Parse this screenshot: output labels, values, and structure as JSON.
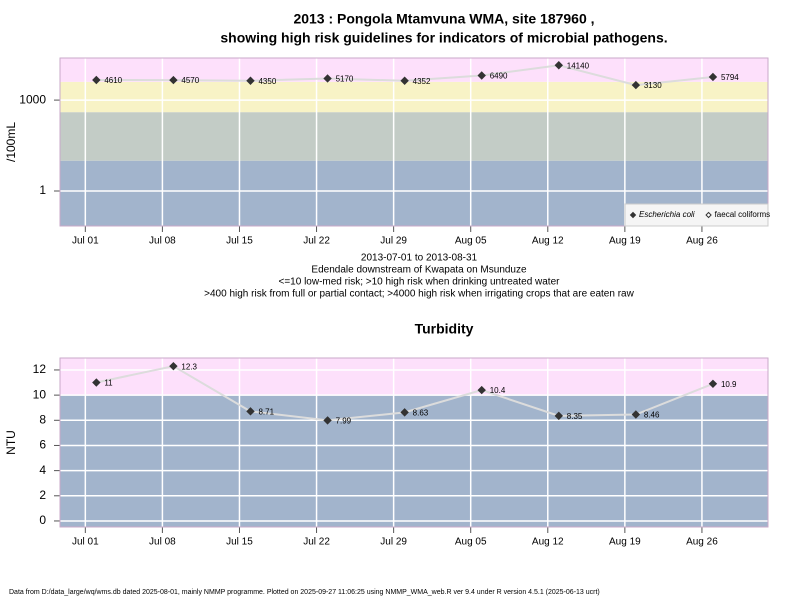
{
  "chart_data": [
    {
      "type": "line",
      "title": [
        "2013 : Pongola Mtamvuna WMA, site 187960 ,",
        "showing high risk guidelines for indicators of microbial pathogens."
      ],
      "notes": [
        "2013-07-01 to 2013-08-31",
        "Edendale downstream of Kwapata on Msunduze",
        "<=10 low-med risk; >10 high risk when drinking untreated water",
        ">400 high risk from full or partial contact; >4000 high risk when irrigating crops that are eaten raw"
      ],
      "y_label": "/100mL",
      "log_y": true,
      "x": [
        1,
        8,
        15,
        22,
        29,
        36,
        43,
        50,
        57
      ],
      "xlim": [
        -2.3,
        62
      ],
      "xticks": [
        {
          "value": 0,
          "label": "Jul 01"
        },
        {
          "value": 7,
          "label": "Jul 08"
        },
        {
          "value": 14,
          "label": "Jul 15"
        },
        {
          "value": 21,
          "label": "Jul 22"
        },
        {
          "value": 28,
          "label": "Jul 29"
        },
        {
          "value": 35,
          "label": "Aug 05"
        },
        {
          "value": 42,
          "label": "Aug 12"
        },
        {
          "value": 49,
          "label": "Aug 19"
        },
        {
          "value": 56,
          "label": "Aug 26"
        }
      ],
      "ylim": [
        0.07,
        24500
      ],
      "yticks": [
        1,
        1000
      ],
      "bands": [
        {
          "to": 10,
          "color": "#a2b4cc"
        },
        {
          "from": 10,
          "to": 400,
          "color": "#c3ccc6"
        },
        {
          "from": 400,
          "to": 4000,
          "color": "#f8f3c6"
        },
        {
          "from": 4000,
          "color": "#fde0fb"
        }
      ],
      "grid": true,
      "line_color": "#dcdcdc",
      "legend": "lower right",
      "series": [
        {
          "name": "Escherichia coli",
          "color": "#333333",
          "values": [
            4610,
            4570,
            4350,
            5170,
            4352,
            6490,
            14140,
            3130,
            5794
          ]
        },
        {
          "name": "faecal coliforms",
          "color": "#333333",
          "hollow": true,
          "values": [
            null,
            null,
            null,
            null,
            null,
            null,
            null,
            null,
            null
          ]
        }
      ]
    },
    {
      "type": "line",
      "title": [
        "Turbidity"
      ],
      "y_label": "NTU",
      "log_y": false,
      "x": [
        1,
        8,
        15,
        22,
        29,
        36,
        43,
        50,
        57
      ],
      "xlim": [
        -2.3,
        62
      ],
      "xticks": [
        {
          "value": 0,
          "label": "Jul 01"
        },
        {
          "value": 7,
          "label": "Jul 08"
        },
        {
          "value": 14,
          "label": "Jul 15"
        },
        {
          "value": 21,
          "label": "Jul 22"
        },
        {
          "value": 28,
          "label": "Jul 29"
        },
        {
          "value": 35,
          "label": "Aug 05"
        },
        {
          "value": 42,
          "label": "Aug 12"
        },
        {
          "value": 49,
          "label": "Aug 19"
        },
        {
          "value": 56,
          "label": "Aug 26"
        }
      ],
      "ylim": [
        -0.48,
        12.95
      ],
      "yticks": [
        0,
        2,
        4,
        6,
        8,
        10,
        12
      ],
      "bands": [
        {
          "to": 10,
          "color": "#a2b4cc"
        },
        {
          "from": 10,
          "color": "#fde0fb"
        }
      ],
      "grid": true,
      "line_color": "#dcdcdc",
      "series": [
        {
          "name": "Turbidity",
          "color": "#333333",
          "values": [
            11,
            12.3,
            8.71,
            7.99,
            8.63,
            10.4,
            8.35,
            8.46,
            10.9
          ]
        }
      ]
    }
  ],
  "footer": "Data from D:/data_large/wq/wms.db dated 2025-08-01, mainly NMMP programme. Plotted on 2025-09-27 11:06:25 using NMMP_WMA_web.R ver 9.4 under R version 4.5.1 (2025-06-13 ucrt)"
}
